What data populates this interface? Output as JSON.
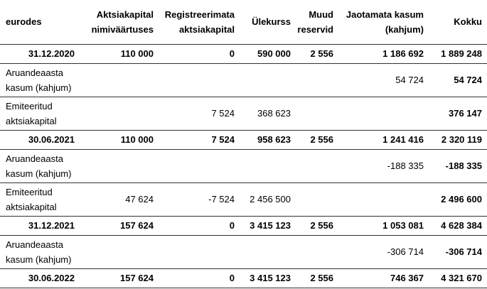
{
  "table": {
    "unit_label": "eurodes",
    "columns": [
      [
        "eurodes"
      ],
      [
        "Aktsiakapital",
        "nimiväärtuses"
      ],
      [
        "Registreerimata",
        "aktsiakapital"
      ],
      [
        "Ülekurss"
      ],
      [
        "Muud",
        "reservid"
      ],
      [
        "Jaotamata kasum",
        "(kahjum)"
      ],
      [
        "Kokku"
      ]
    ],
    "rows": [
      {
        "label": "31.12.2020",
        "emphasized": true,
        "values": [
          "110 000",
          "0",
          "590 000",
          "2 556",
          "1 186 692",
          "1 889 248"
        ]
      },
      {
        "label": "Aruandeaasta kasum (kahjum)",
        "emphasized": false,
        "values": [
          "",
          "",
          "",
          "",
          "54 724",
          "54 724"
        ]
      },
      {
        "label": "Emiteeritud aktsiakapital",
        "emphasized": false,
        "values": [
          "",
          "7 524",
          "368 623",
          "",
          "",
          "376 147"
        ]
      },
      {
        "label": "30.06.2021",
        "emphasized": true,
        "values": [
          "110 000",
          "7 524",
          "958 623",
          "2 556",
          "1 241 416",
          "2 320 119"
        ]
      },
      {
        "label": "Aruandeaasta kasum (kahjum)",
        "emphasized": false,
        "values": [
          "",
          "",
          "",
          "",
          "-188 335",
          "-188 335"
        ]
      },
      {
        "label": "Emiteeritud aktsiakapital",
        "emphasized": false,
        "values": [
          "47 624",
          "-7 524",
          "2 456 500",
          "",
          "",
          "2 496 600"
        ]
      },
      {
        "label": "31.12.2021",
        "emphasized": true,
        "values": [
          "157 624",
          "0",
          "3 415 123",
          "2 556",
          "1 053 081",
          "4 628 384"
        ]
      },
      {
        "label": "Aruandeaasta kasum (kahjum)",
        "emphasized": false,
        "values": [
          "",
          "",
          "",
          "",
          "-306 714",
          "-306 714"
        ]
      },
      {
        "label": "30.06.2022",
        "emphasized": true,
        "values": [
          "157 624",
          "0",
          "3 415 123",
          "2 556",
          "746 367",
          "4 321 670"
        ]
      }
    ]
  },
  "colors": {
    "text": "#000000",
    "rule": "#333333",
    "background": "#ffffff"
  }
}
